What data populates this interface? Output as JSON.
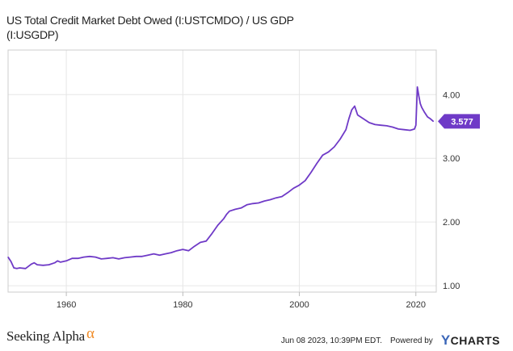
{
  "chart_data": {
    "type": "line",
    "title_line1": "US Total Credit Market Debt Owed (I:USTCMDO) / US GDP",
    "title_line2": "(I:USGDP)",
    "xlabel": "",
    "ylabel": "",
    "xlim": [
      1950.0,
      2023.5
    ],
    "ylim": [
      0.9,
      4.7
    ],
    "x_ticks": [
      "1960",
      "1980",
      "2000",
      "2020"
    ],
    "x_tick_values": [
      1960,
      1980,
      2000,
      2020
    ],
    "y_ticks": [
      "1.00",
      "2.00",
      "3.00",
      "4.00"
    ],
    "y_tick_values": [
      1.0,
      2.0,
      3.0,
      4.0
    ],
    "grid": true,
    "axis_side": "right",
    "last_value_label": "3.577",
    "series": [
      {
        "color": "#6f3ac7",
        "x": [
          1950.0,
          1950.5,
          1951.0,
          1951.5,
          1952.0,
          1953.0,
          1954.0,
          1954.5,
          1955.0,
          1956.0,
          1957.0,
          1958.0,
          1958.5,
          1959.0,
          1960.0,
          1961.0,
          1962.0,
          1963.0,
          1964.0,
          1965.0,
          1966.0,
          1967.0,
          1968.0,
          1969.0,
          1970.0,
          1971.0,
          1972.0,
          1973.0,
          1974.0,
          1975.0,
          1976.0,
          1977.0,
          1978.0,
          1979.0,
          1980.0,
          1981.0,
          1982.0,
          1983.0,
          1984.0,
          1985.0,
          1986.0,
          1987.0,
          1987.5,
          1988.0,
          1989.0,
          1990.0,
          1991.0,
          1992.0,
          1993.0,
          1994.0,
          1995.0,
          1996.0,
          1997.0,
          1998.0,
          1999.0,
          2000.0,
          2001.0,
          2002.0,
          2003.0,
          2004.0,
          2005.0,
          2006.0,
          2007.0,
          2008.0,
          2008.5,
          2009.0,
          2009.5,
          2010.0,
          2011.0,
          2012.0,
          2013.0,
          2014.0,
          2015.0,
          2016.0,
          2017.0,
          2018.0,
          2019.0,
          2019.75,
          2020.0,
          2020.25,
          2020.5,
          2020.75,
          2021.0,
          2021.5,
          2022.0,
          2022.5,
          2023.0
        ],
        "values": [
          1.45,
          1.38,
          1.28,
          1.27,
          1.28,
          1.27,
          1.34,
          1.36,
          1.33,
          1.32,
          1.33,
          1.36,
          1.39,
          1.37,
          1.39,
          1.43,
          1.43,
          1.45,
          1.46,
          1.45,
          1.42,
          1.43,
          1.44,
          1.42,
          1.44,
          1.45,
          1.46,
          1.46,
          1.48,
          1.5,
          1.48,
          1.5,
          1.52,
          1.55,
          1.57,
          1.55,
          1.62,
          1.68,
          1.7,
          1.82,
          1.95,
          2.05,
          2.12,
          2.17,
          2.2,
          2.22,
          2.27,
          2.29,
          2.3,
          2.33,
          2.35,
          2.38,
          2.4,
          2.46,
          2.53,
          2.58,
          2.65,
          2.78,
          2.92,
          3.05,
          3.1,
          3.18,
          3.3,
          3.45,
          3.62,
          3.76,
          3.82,
          3.68,
          3.62,
          3.56,
          3.53,
          3.52,
          3.51,
          3.49,
          3.46,
          3.45,
          3.44,
          3.46,
          3.52,
          4.12,
          3.98,
          3.86,
          3.8,
          3.72,
          3.65,
          3.62,
          3.58
        ]
      }
    ]
  },
  "footer": {
    "brand": "Seeking Alpha",
    "brand_symbol": "α",
    "timestamp": "Jun 08 2023, 10:39PM EDT.",
    "powered_by": "Powered by",
    "ycharts_y": "Y",
    "ycharts_rest": "CHARTS"
  }
}
